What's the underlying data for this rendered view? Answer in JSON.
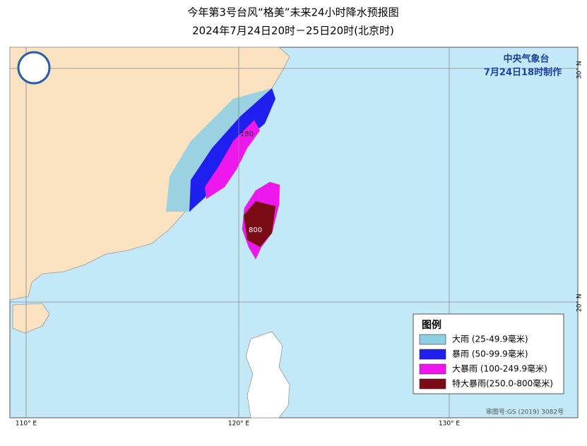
{
  "header": {
    "title": "今年第3号台风“格美”未来24小时降水预报图",
    "subtitle": "2024年7月24日20时－25日20时(北京时)"
  },
  "agency": {
    "name": "中央气象台",
    "issued": "7月24日18时制作"
  },
  "legend": {
    "title": "图例",
    "items": [
      {
        "label": "大雨 (25-49.9毫米)",
        "color": "#8fcfe4"
      },
      {
        "label": "暴雨 (50-99.9毫米)",
        "color": "#1f1ff0"
      },
      {
        "label": "大暴雨 (100-249.9毫米)",
        "color": "#ee18ee"
      },
      {
        "label": "特大暴雨(250.0-800毫米)",
        "color": "#7a0a14"
      }
    ]
  },
  "map": {
    "lon_labels": [
      "110° E",
      "120° E",
      "130° E"
    ],
    "lat_labels": [
      "30° N",
      "20° N"
    ],
    "max_labels": [
      "180",
      "800"
    ],
    "review_number": "审图号:GS (2019) 3082号"
  }
}
